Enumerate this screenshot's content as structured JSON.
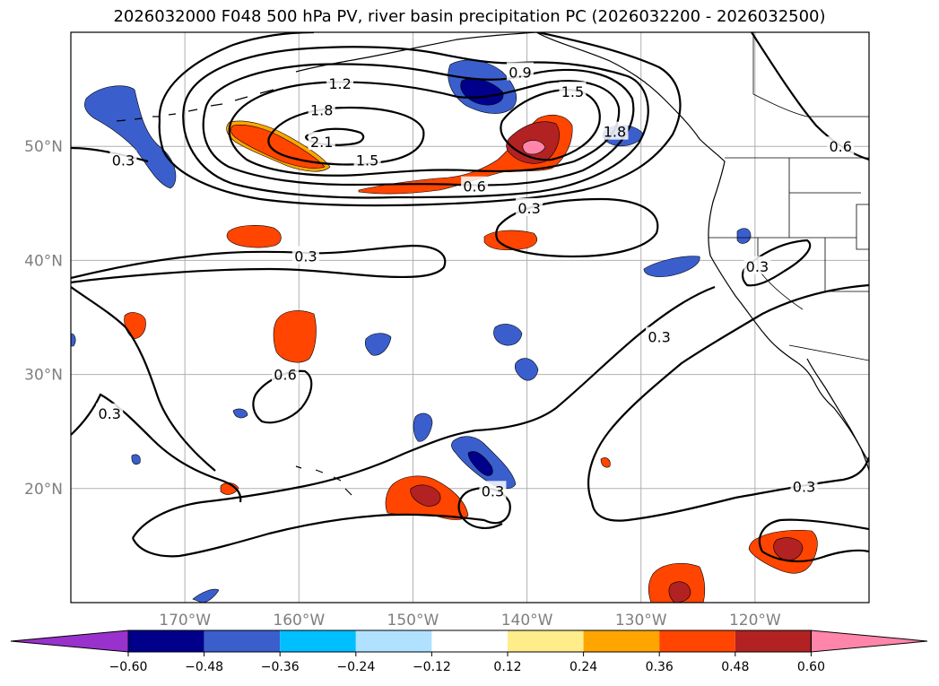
{
  "title": "2026032000 F048 500 hPa PV, river basin precipitation PC (2026032200 - 2026032500)",
  "map": {
    "lon_range": [
      -180,
      -110
    ],
    "lat_range": [
      10,
      60
    ],
    "lon_ticks": [
      {
        "lon": -170,
        "label": "170°W"
      },
      {
        "lon": -160,
        "label": "160°W"
      },
      {
        "lon": -150,
        "label": "150°W"
      },
      {
        "lon": -140,
        "label": "140°W"
      },
      {
        "lon": -130,
        "label": "130°W"
      },
      {
        "lon": -120,
        "label": "120°W"
      }
    ],
    "lat_ticks": [
      {
        "lat": 50,
        "label": "50°N"
      },
      {
        "lat": 40,
        "label": "40°N"
      },
      {
        "lat": 30,
        "label": "30°N"
      },
      {
        "lat": 20,
        "label": "20°N"
      }
    ],
    "gridlines": true
  },
  "contour_labels": [
    {
      "text": "0.9",
      "lon": -140.6,
      "lat": 56.5
    },
    {
      "text": "1.2",
      "lon": -156.4,
      "lat": 55.5
    },
    {
      "text": "1.5",
      "lon": -136.0,
      "lat": 54.8
    },
    {
      "text": "1.8",
      "lon": -158.0,
      "lat": 53.2
    },
    {
      "text": "2.1",
      "lon": -158.0,
      "lat": 50.4
    },
    {
      "text": "1.5",
      "lon": -154.0,
      "lat": 48.8
    },
    {
      "text": "1.8",
      "lon": -132.3,
      "lat": 51.3
    },
    {
      "text": "0.6",
      "lon": -144.6,
      "lat": 46.5
    },
    {
      "text": "0.3",
      "lon": -175.4,
      "lat": 48.8
    },
    {
      "text": "0.6",
      "lon": -112.5,
      "lat": 50.0
    },
    {
      "text": "0.3",
      "lon": -139.8,
      "lat": 44.6
    },
    {
      "text": "0.3",
      "lon": -159.4,
      "lat": 40.4
    },
    {
      "text": "0.3",
      "lon": -119.8,
      "lat": 39.5
    },
    {
      "text": "0.3",
      "lon": -128.4,
      "lat": 33.3
    },
    {
      "text": "0.6",
      "lon": -161.2,
      "lat": 30.0
    },
    {
      "text": "0.3",
      "lon": -176.6,
      "lat": 26.6
    },
    {
      "text": "0.3",
      "lon": -143.0,
      "lat": 19.8
    },
    {
      "text": "0.3",
      "lon": -115.7,
      "lat": 20.2
    }
  ],
  "precip_patches": [
    {
      "polarity": "negative",
      "intensity": 2,
      "center": [
        -145.5,
        55.5
      ]
    },
    {
      "polarity": "negative",
      "intensity": 1,
      "center": [
        -175.0,
        51.0
      ]
    },
    {
      "polarity": "negative",
      "intensity": 1,
      "center": [
        -132.0,
        50.5
      ]
    },
    {
      "polarity": "negative",
      "intensity": 1,
      "center": [
        -119.5,
        42.2
      ]
    },
    {
      "polarity": "negative",
      "intensity": 1,
      "center": [
        -127.0,
        38.8
      ]
    },
    {
      "polarity": "negative",
      "intensity": 1,
      "center": [
        -151.5,
        33.0
      ]
    },
    {
      "polarity": "negative",
      "intensity": 1,
      "center": [
        -141.5,
        33.5
      ]
    },
    {
      "polarity": "negative",
      "intensity": 1,
      "center": [
        -140.0,
        30.5
      ]
    },
    {
      "polarity": "negative",
      "intensity": 2,
      "center": [
        -144.0,
        23.0
      ]
    },
    {
      "polarity": "negative",
      "intensity": 1,
      "center": [
        -148.5,
        25.5
      ]
    },
    {
      "polarity": "positive",
      "intensity": 2,
      "center": [
        -139.5,
        50.0
      ]
    },
    {
      "polarity": "positive",
      "intensity": 1,
      "center": [
        -158.5,
        50.0
      ]
    },
    {
      "polarity": "positive",
      "intensity": 1,
      "center": [
        -150.0,
        46.3
      ]
    },
    {
      "polarity": "positive",
      "intensity": 1,
      "center": [
        -164.0,
        42.0
      ]
    },
    {
      "polarity": "positive",
      "intensity": 1,
      "center": [
        -141.0,
        41.5
      ]
    },
    {
      "polarity": "positive",
      "intensity": 1,
      "center": [
        -160.0,
        33.7
      ]
    },
    {
      "polarity": "positive",
      "intensity": 1,
      "center": [
        -174.5,
        34.5
      ]
    },
    {
      "polarity": "positive",
      "intensity": 2,
      "center": [
        -149.0,
        19.5
      ]
    },
    {
      "polarity": "positive",
      "intensity": 2,
      "center": [
        -116.5,
        14.5
      ]
    },
    {
      "polarity": "positive",
      "intensity": 2,
      "center": [
        -126.5,
        11.5
      ]
    },
    {
      "polarity": "positive",
      "intensity": 1,
      "center": [
        -166.0,
        20.0
      ]
    }
  ],
  "colorbar": {
    "ticks": [
      "−0.60",
      "−0.48",
      "−0.36",
      "−0.24",
      "−0.12",
      "0.12",
      "0.24",
      "0.36",
      "0.48",
      "0.60"
    ],
    "under_color": "#9932cc",
    "over_color": "#ff85aa",
    "colors": [
      "#00008b",
      "#3a5fcd",
      "#00bfff",
      "#b0e2ff",
      "#ffffff",
      "#ffec8b",
      "#ffa500",
      "#ff4500",
      "#b22222"
    ]
  }
}
